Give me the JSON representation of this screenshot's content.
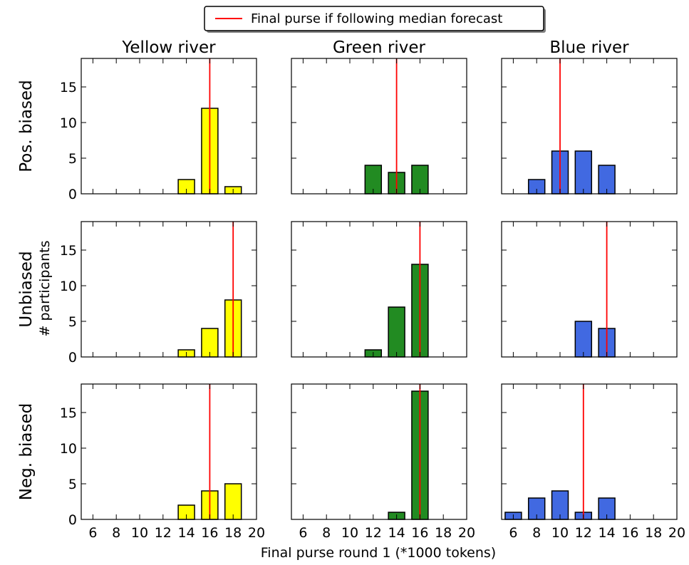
{
  "legend": {
    "label": "Final purse if following median forecast"
  },
  "ylabel_shared": "# participants",
  "xlabel_shared": "Final purse round 1 (*1000 tokens)",
  "colors": {
    "yellow": "#ffff00",
    "green": "#228b22",
    "blue": "#4169e1",
    "median_line": "#ff0000",
    "bar_edge": "#000000"
  },
  "chart_data": {
    "type": "bar",
    "columns": [
      "Yellow river",
      "Green river",
      "Blue river"
    ],
    "rows": [
      "Pos. biased",
      "Unbiased",
      "Neg. biased"
    ],
    "xlim": [
      5,
      20
    ],
    "ylim": [
      0,
      19
    ],
    "xticks": [
      6,
      8,
      10,
      12,
      14,
      16,
      18,
      20
    ],
    "yticks": [
      0,
      5,
      10,
      15
    ],
    "panels": [
      {
        "row": "Pos. biased",
        "column": "Yellow river",
        "color": "#ffff00",
        "bars": [
          {
            "x": 14,
            "count": 2
          },
          {
            "x": 16,
            "count": 12
          },
          {
            "x": 18,
            "count": 1
          }
        ],
        "median_line": 16
      },
      {
        "row": "Pos. biased",
        "column": "Green river",
        "color": "#228b22",
        "bars": [
          {
            "x": 12,
            "count": 4
          },
          {
            "x": 14,
            "count": 3
          },
          {
            "x": 16,
            "count": 4
          }
        ],
        "median_line": 14
      },
      {
        "row": "Pos. biased",
        "column": "Blue river",
        "color": "#4169e1",
        "bars": [
          {
            "x": 8,
            "count": 2
          },
          {
            "x": 10,
            "count": 6
          },
          {
            "x": 12,
            "count": 6
          },
          {
            "x": 14,
            "count": 4
          }
        ],
        "median_line": 10
      },
      {
        "row": "Unbiased",
        "column": "Yellow river",
        "color": "#ffff00",
        "bars": [
          {
            "x": 14,
            "count": 1
          },
          {
            "x": 16,
            "count": 4
          },
          {
            "x": 18,
            "count": 8
          }
        ],
        "median_line": 18
      },
      {
        "row": "Unbiased",
        "column": "Green river",
        "color": "#228b22",
        "bars": [
          {
            "x": 12,
            "count": 1
          },
          {
            "x": 14,
            "count": 7
          },
          {
            "x": 16,
            "count": 13
          }
        ],
        "median_line": 16
      },
      {
        "row": "Unbiased",
        "column": "Blue river",
        "color": "#4169e1",
        "bars": [
          {
            "x": 12,
            "count": 5
          },
          {
            "x": 14,
            "count": 4
          }
        ],
        "median_line": 14
      },
      {
        "row": "Neg. biased",
        "column": "Yellow river",
        "color": "#ffff00",
        "bars": [
          {
            "x": 14,
            "count": 2
          },
          {
            "x": 16,
            "count": 4
          },
          {
            "x": 18,
            "count": 5
          }
        ],
        "median_line": 16
      },
      {
        "row": "Neg. biased",
        "column": "Green river",
        "color": "#228b22",
        "bars": [
          {
            "x": 14,
            "count": 1
          },
          {
            "x": 16,
            "count": 18
          }
        ],
        "median_line": 16
      },
      {
        "row": "Neg. biased",
        "column": "Blue river",
        "color": "#4169e1",
        "bars": [
          {
            "x": 6,
            "count": 1
          },
          {
            "x": 8,
            "count": 3
          },
          {
            "x": 10,
            "count": 4
          },
          {
            "x": 12,
            "count": 1
          },
          {
            "x": 14,
            "count": 3
          }
        ],
        "median_line": 12
      }
    ]
  }
}
